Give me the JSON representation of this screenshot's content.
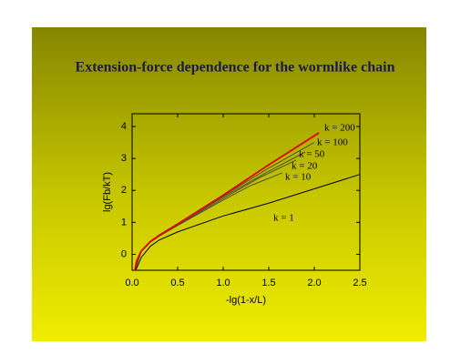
{
  "chart_data": {
    "type": "line",
    "title": "Extension-force dependence for the wormlike chain",
    "x_label": "-lg(1-x/L)",
    "y_label": "lg(Fb/kT)",
    "xlim": [
      0,
      2.5
    ],
    "ylim": [
      -0.5,
      4.4
    ],
    "xticks": [
      {
        "value": 0,
        "label": "0.0"
      },
      0.5,
      {
        "value": 1,
        "label": "1.0"
      },
      1.5,
      {
        "value": 2,
        "label": "2.0"
      },
      2.5
    ],
    "yticks": [
      0,
      1,
      2,
      3,
      4
    ],
    "series": [
      {
        "name": "k = 1",
        "color": "#000000",
        "x": [
          0.04,
          0.1,
          0.2,
          0.3,
          0.5,
          1,
          1.5,
          2,
          2.5
        ],
        "values": [
          -0.5,
          -0.1,
          0.25,
          0.45,
          0.7,
          1.2,
          1.6,
          2.05,
          2.5
        ]
      },
      {
        "name": "k = 10",
        "color": "#505030",
        "x": [
          0.03,
          0.1,
          0.2,
          0.3,
          0.5,
          1,
          1.3,
          1.65
        ],
        "values": [
          -0.5,
          0.08,
          0.38,
          0.57,
          0.9,
          1.7,
          2.15,
          2.55
        ]
      },
      {
        "name": "k = 20",
        "color": "#505030",
        "x": [
          0.03,
          0.1,
          0.2,
          0.3,
          0.5,
          1,
          1.4,
          1.8
        ],
        "values": [
          -0.5,
          0.09,
          0.39,
          0.58,
          0.92,
          1.75,
          2.4,
          2.95
        ]
      },
      {
        "name": "k = 50",
        "color": "#505030",
        "x": [
          0.03,
          0.1,
          0.2,
          0.3,
          0.5,
          1,
          1.5,
          1.9
        ],
        "values": [
          -0.5,
          0.1,
          0.4,
          0.59,
          0.94,
          1.8,
          2.6,
          3.2
        ]
      },
      {
        "name": "k = 100",
        "color": "#505030",
        "x": [
          0.03,
          0.1,
          0.2,
          0.3,
          0.5,
          1,
          1.5,
          2
        ],
        "values": [
          -0.5,
          0.1,
          0.4,
          0.6,
          0.95,
          1.83,
          2.7,
          3.5
        ]
      },
      {
        "name": "k = 200",
        "color": "#e00000",
        "x": [
          0.03,
          0.05,
          0.1,
          0.2,
          0.3,
          0.5,
          1,
          1.5,
          2.05
        ],
        "values": [
          -0.5,
          -0.2,
          0.1,
          0.4,
          0.6,
          0.95,
          1.85,
          2.8,
          3.8
        ]
      }
    ]
  }
}
